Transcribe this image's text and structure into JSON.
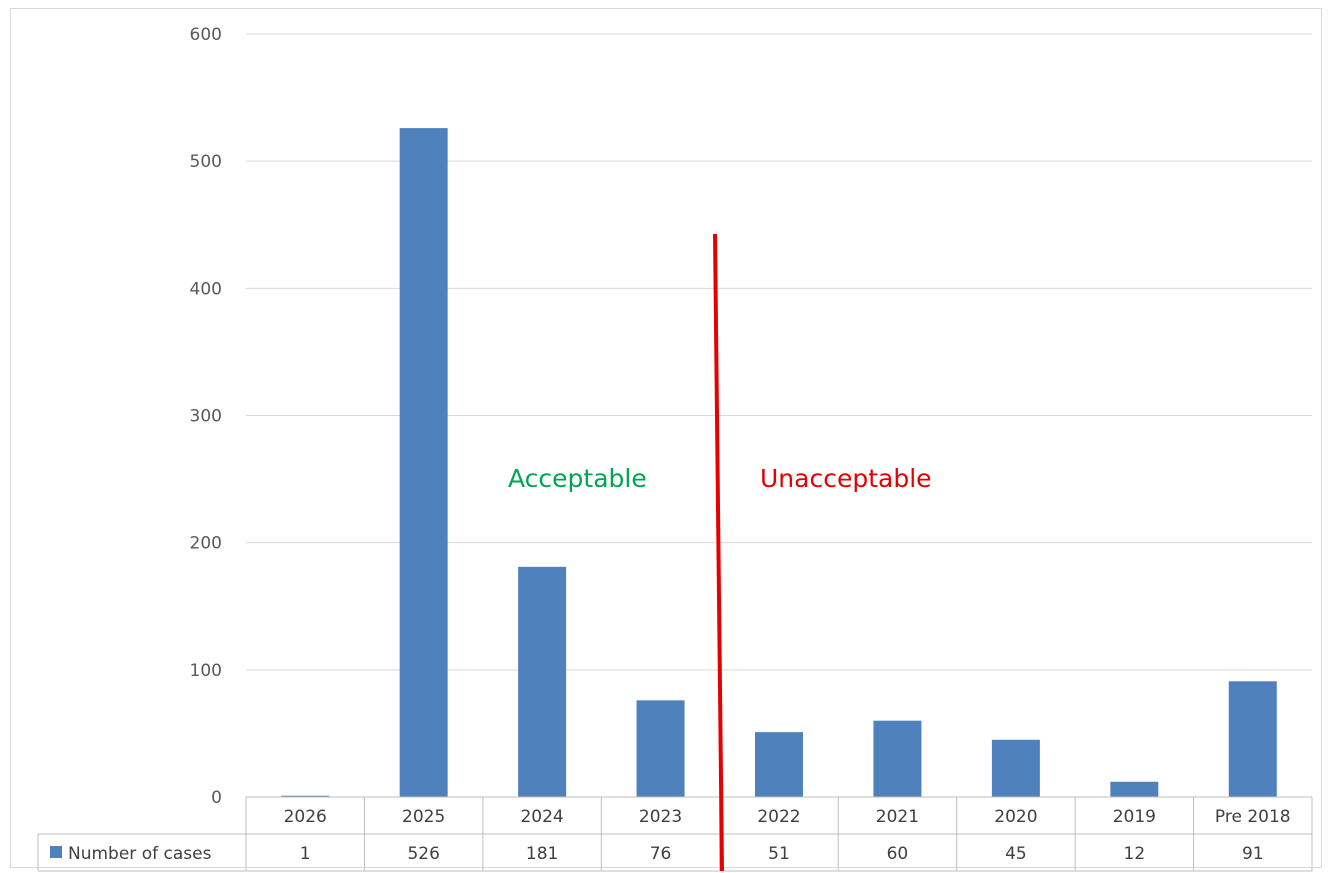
{
  "chart_data": {
    "type": "bar",
    "categories": [
      "2026",
      "2025",
      "2024",
      "2023",
      "2022",
      "2021",
      "2020",
      "2019",
      "Pre 2018"
    ],
    "series": [
      {
        "name": "Number of cases",
        "values": [
          1,
          526,
          181,
          76,
          51,
          60,
          45,
          12,
          91
        ],
        "color": "#4f81bd"
      }
    ],
    "ylim": [
      0,
      600
    ],
    "yticks": [
      0,
      100,
      200,
      300,
      400,
      500,
      600
    ],
    "grid": true,
    "data_table": true,
    "annotations": [
      {
        "text": "Acceptable",
        "color": "#00a651"
      },
      {
        "text": "Unacceptable",
        "color": "#e60000"
      }
    ],
    "divider": {
      "after_category": "2023",
      "color": "#e60000"
    }
  }
}
